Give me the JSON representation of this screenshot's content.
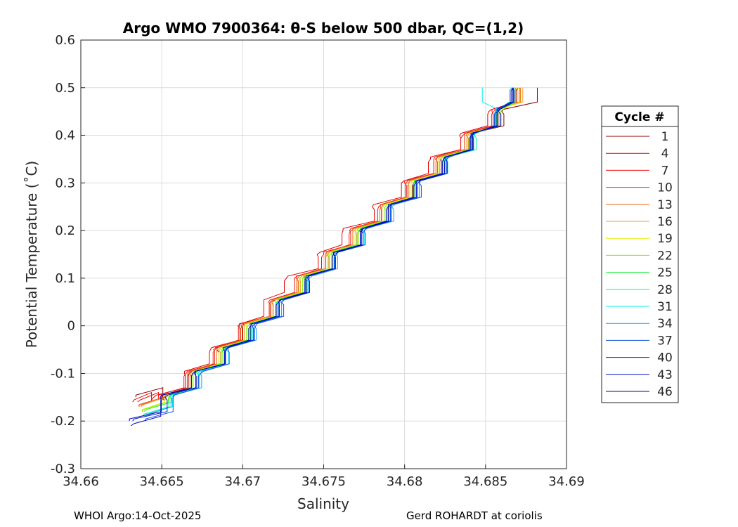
{
  "chart_data": {
    "type": "line",
    "title": "Argo WMO 7900364: θ-S below 500 dbar,  QC=(1,2)",
    "xlabel": "Salinity",
    "ylabel": "Potential Temperature (˚C)",
    "xlim": [
      34.66,
      34.69
    ],
    "ylim": [
      -0.3,
      0.6
    ],
    "xticks": [
      "34.66",
      "34.665",
      "34.67",
      "34.675",
      "34.68",
      "34.685",
      "34.69"
    ],
    "yticks": [
      "0.6",
      "0.5",
      "0.4",
      "0.3",
      "0.2",
      "0.1",
      "0",
      "-0.1",
      "-0.2",
      "-0.3"
    ],
    "grid": true,
    "legend_title": "Cycle #",
    "legend_position": "right-outside",
    "theta_levels": [
      -0.2,
      -0.15,
      -0.1,
      -0.05,
      0,
      0.05,
      0.1,
      0.15,
      0.2,
      0.25,
      0.3,
      0.35,
      0.4,
      0.45,
      0.5
    ],
    "series": [
      {
        "name": "1",
        "color": "#8b0000",
        "theta_start": -0.15,
        "salinity": [
          34.6634,
          34.665,
          34.6667,
          34.6684,
          34.67,
          34.6718,
          34.6738,
          34.6756,
          34.6772,
          34.679,
          34.6806,
          34.6822,
          34.6842,
          34.686,
          34.6882
        ]
      },
      {
        "name": "4",
        "color": "#e00000",
        "theta_start": -0.16,
        "salinity": [
          34.6632,
          34.6645,
          34.6664,
          34.668,
          34.6697,
          34.6713,
          34.6727,
          34.6746,
          34.6762,
          34.678,
          34.6798,
          34.6816,
          34.6834,
          34.6852,
          34.6868
        ]
      },
      {
        "name": "7",
        "color": "#f01010",
        "theta_start": -0.16,
        "salinity": [
          34.6635,
          34.6648,
          34.6665,
          34.6682,
          34.6698,
          34.6716,
          34.6732,
          34.675,
          34.6766,
          34.6784,
          34.68,
          34.6818,
          34.6836,
          34.6854,
          34.687
        ]
      },
      {
        "name": "10",
        "color": "#f03010",
        "theta_start": -0.17,
        "salinity": [
          34.6636,
          34.665,
          34.6666,
          34.6683,
          34.6699,
          34.6717,
          34.6733,
          34.6751,
          34.6767,
          34.6785,
          34.6801,
          34.6819,
          34.6837,
          34.6855,
          34.6871
        ]
      },
      {
        "name": "13",
        "color": "#f06010",
        "theta_start": -0.17,
        "salinity": [
          34.6637,
          34.6651,
          34.6667,
          34.6684,
          34.67,
          34.6718,
          34.6734,
          34.6752,
          34.6768,
          34.6786,
          34.6802,
          34.682,
          34.6838,
          34.6856,
          34.6872
        ]
      },
      {
        "name": "16",
        "color": "#f0a020",
        "theta_start": -0.17,
        "salinity": [
          34.6637,
          34.6652,
          34.6668,
          34.6685,
          34.6701,
          34.6718,
          34.6735,
          34.6752,
          34.6769,
          34.6786,
          34.6803,
          34.6821,
          34.6839,
          34.6857,
          34.6873
        ]
      },
      {
        "name": "19",
        "color": "#e0f000",
        "theta_start": -0.18,
        "salinity": [
          34.6638,
          34.6653,
          34.6669,
          34.6686,
          34.6702,
          34.6719,
          34.6736,
          34.6753,
          34.677,
          34.6787,
          34.6804,
          34.6822,
          34.684,
          34.6858,
          34.687
        ]
      },
      {
        "name": "22",
        "color": "#80f000",
        "theta_start": -0.18,
        "salinity": [
          34.6638,
          34.6654,
          34.667,
          34.6687,
          34.6703,
          34.672,
          34.6737,
          34.6754,
          34.6771,
          34.6788,
          34.6805,
          34.6823,
          34.6841,
          34.6859,
          34.6869
        ]
      },
      {
        "name": "25",
        "color": "#20f040",
        "theta_start": -0.18,
        "salinity": [
          34.6639,
          34.6655,
          34.6671,
          34.6688,
          34.6704,
          34.6721,
          34.6738,
          34.6755,
          34.6772,
          34.6789,
          34.6806,
          34.6824,
          34.6842,
          34.6858,
          34.6868
        ]
      },
      {
        "name": "28",
        "color": "#00f0a0",
        "theta_start": -0.19,
        "salinity": [
          34.6639,
          34.6655,
          34.6672,
          34.6689,
          34.6705,
          34.6722,
          34.6739,
          34.6756,
          34.6773,
          34.679,
          34.6807,
          34.6825,
          34.6843,
          34.6857,
          34.6866
        ]
      },
      {
        "name": "31",
        "color": "#00f0f0",
        "theta_start": -0.19,
        "salinity": [
          34.664,
          34.6656,
          34.6673,
          34.669,
          34.6706,
          34.6723,
          34.674,
          34.6757,
          34.6774,
          34.6791,
          34.6808,
          34.6826,
          34.6843,
          34.6856,
          34.6848
        ]
      },
      {
        "name": "34",
        "color": "#20a0f0",
        "theta_start": -0.19,
        "salinity": [
          34.664,
          34.6657,
          34.6674,
          34.669,
          34.6707,
          34.6724,
          34.6741,
          34.6758,
          34.6775,
          34.6792,
          34.6809,
          34.6826,
          34.6842,
          34.6856,
          34.6866
        ]
      },
      {
        "name": "37",
        "color": "#1050e0",
        "theta_start": -0.2,
        "salinity": [
          34.664,
          34.6657,
          34.6674,
          34.6691,
          34.6708,
          34.6724,
          34.6741,
          34.6758,
          34.6775,
          34.6792,
          34.6809,
          34.6826,
          34.6842,
          34.6857,
          34.6867
        ]
      },
      {
        "name": "40",
        "color": "#0020d0",
        "theta_start": -0.2,
        "salinity": [
          34.6632,
          34.6652,
          34.6671,
          34.669,
          34.6706,
          34.6723,
          34.674,
          34.6757,
          34.6774,
          34.6791,
          34.6808,
          34.6825,
          34.6842,
          34.6857,
          34.6867
        ]
      },
      {
        "name": "43",
        "color": "#0010c0",
        "theta_start": -0.21,
        "salinity": [
          34.6631,
          34.665,
          34.667,
          34.6689,
          34.6705,
          34.6722,
          34.6739,
          34.6756,
          34.6773,
          34.679,
          34.6807,
          34.6824,
          34.6841,
          34.6857,
          34.6867
        ]
      },
      {
        "name": "46",
        "color": "#0000b0",
        "theta_start": -0.2,
        "salinity": [
          34.663,
          34.6649,
          34.6669,
          34.6688,
          34.6705,
          34.6722,
          34.6739,
          34.6756,
          34.6773,
          34.679,
          34.6807,
          34.6824,
          34.6841,
          34.6858,
          34.6867
        ]
      }
    ]
  },
  "footer": {
    "left": "WHOI Argo:14-Oct-2025",
    "right": "Gerd ROHARDT at coriolis"
  }
}
